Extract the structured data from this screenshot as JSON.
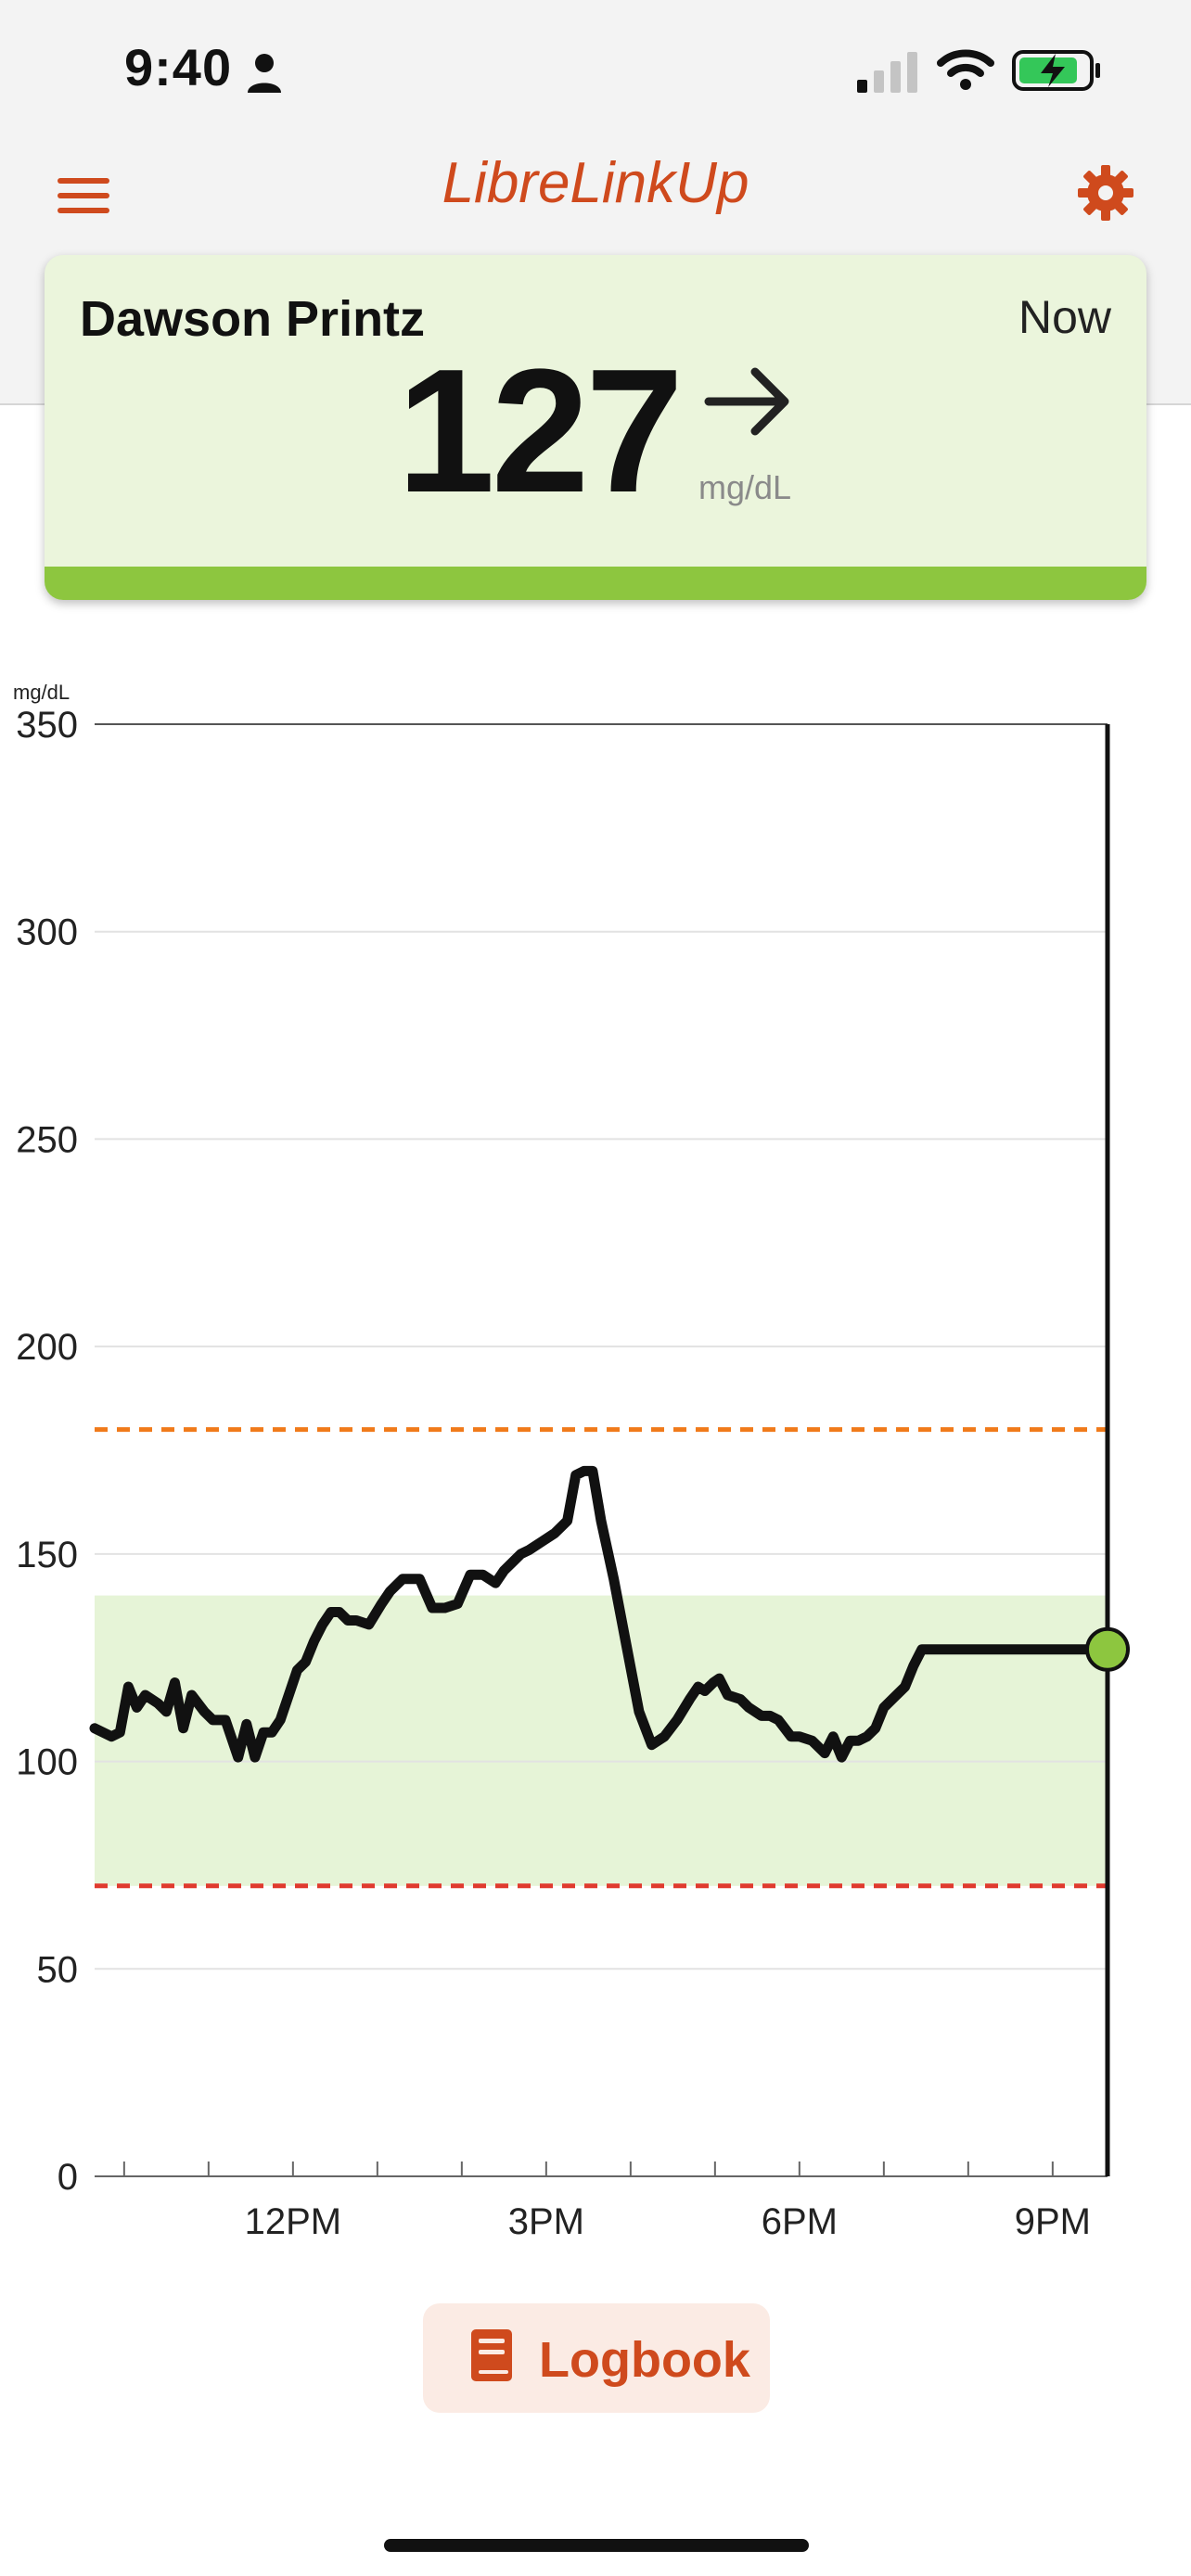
{
  "status_bar": {
    "time": "9:40"
  },
  "app_bar": {
    "title": "LibreLinkUp"
  },
  "reading_card": {
    "patient_name": "Dawson Printz",
    "time_label": "Now",
    "glucose_value": "127",
    "unit": "mg/dL",
    "trend": "steady-arrow-right",
    "status_color": "#8dc63f"
  },
  "chart_data": {
    "type": "line",
    "ylabel": "mg/dL",
    "ylim": [
      0,
      350
    ],
    "yticks": [
      "0",
      "50",
      "100",
      "150",
      "200",
      "250",
      "300",
      "350"
    ],
    "xlim": [
      9.65,
      21.65
    ],
    "xticks": [
      {
        "hour": 12,
        "label": "12PM"
      },
      {
        "hour": 15,
        "label": "3PM"
      },
      {
        "hour": 18,
        "label": "6PM"
      },
      {
        "hour": 21,
        "label": "9PM"
      }
    ],
    "target_range": [
      70,
      140
    ],
    "high_threshold": 180,
    "low_threshold": 70,
    "colors": {
      "target_band": "#e6f4d7",
      "high_line": "#f07a1a",
      "low_line": "#e03a2e",
      "current_point": "#8dc63f"
    },
    "current_point": {
      "hour": 21.65,
      "value": 127
    },
    "series": [
      {
        "x": [
          9.65,
          9.85,
          9.95,
          10.05,
          10.15,
          10.25,
          10.4,
          10.5,
          10.6,
          10.7,
          10.8,
          10.95,
          11.05,
          11.2,
          11.35,
          11.45,
          11.55,
          11.65,
          11.75,
          11.85,
          11.95,
          12.05,
          12.15,
          12.25,
          12.35,
          12.45,
          12.55,
          12.65,
          12.75,
          12.9,
          13.05,
          13.15,
          13.3,
          13.5,
          13.65,
          13.8,
          13.95,
          14.1,
          14.25,
          14.4,
          14.5,
          14.6,
          14.7,
          14.8,
          14.95,
          15.1,
          15.25,
          15.35,
          15.45,
          15.55,
          15.65,
          15.8,
          15.95,
          16.1,
          16.25,
          16.4,
          16.55,
          16.7,
          16.8,
          16.88,
          16.98,
          17.05,
          17.15,
          17.3,
          17.4,
          17.55,
          17.65,
          17.75,
          17.9,
          18.0,
          18.15,
          18.3,
          18.4,
          18.5,
          18.6,
          18.7,
          18.8,
          18.9,
          19.0,
          19.1,
          19.25,
          19.35,
          19.45,
          19.6,
          19.75,
          19.85,
          19.95,
          20.05,
          20.15,
          20.25,
          20.35,
          20.45,
          20.5,
          20.6,
          20.7,
          20.8,
          20.95,
          21.05,
          21.15,
          21.3,
          21.4,
          21.5,
          21.65
        ],
        "values": [
          108,
          106,
          107,
          118,
          113,
          116,
          114,
          112,
          119,
          108,
          116,
          112,
          110,
          110,
          101,
          109,
          101,
          107,
          107,
          110,
          116,
          122,
          124,
          129,
          133,
          136,
          136,
          134,
          134,
          133,
          138,
          141,
          144,
          144,
          137,
          137,
          138,
          145,
          145,
          143,
          146,
          148,
          150,
          151,
          153,
          155,
          158,
          169,
          170,
          170,
          158,
          144,
          128,
          112,
          104,
          106,
          110,
          115,
          118,
          117,
          119,
          120,
          116,
          115,
          113,
          111,
          111,
          110,
          106,
          106,
          105,
          102,
          106,
          101,
          105,
          105,
          106,
          108,
          113,
          115,
          118,
          123,
          127,
          127,
          127,
          127,
          127,
          127,
          127,
          127,
          127,
          127,
          127,
          127,
          127,
          127,
          127,
          127,
          127,
          127,
          127,
          127,
          127
        ]
      }
    ]
  },
  "actions": {
    "logbook_label": "Logbook"
  }
}
